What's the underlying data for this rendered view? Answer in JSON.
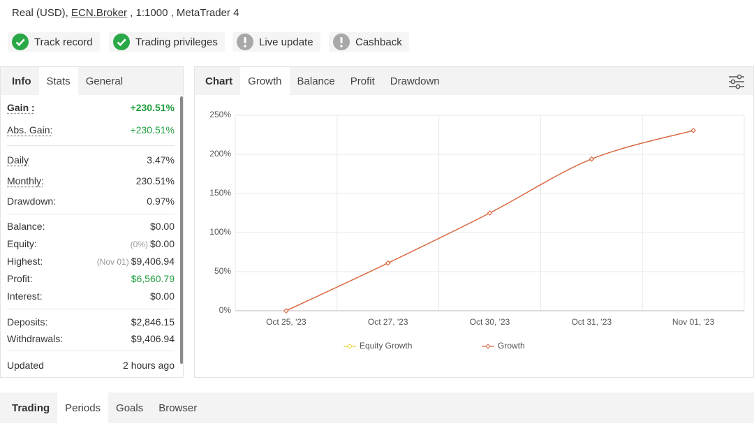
{
  "header": {
    "parts": [
      "Real (USD), ",
      "ECN.Broker",
      " , 1:1000 , MetaTrader 4"
    ]
  },
  "badges": [
    "Track record",
    "Trading privileges",
    "Live update",
    "Cashback"
  ],
  "left_tabs": [
    "Info",
    "Stats",
    "General"
  ],
  "stats": [
    [
      {
        "label": "Gain :",
        "value": "+230.51%",
        "color": "#1e9e3e"
      },
      {
        "label": "Abs. Gain:",
        "value": "+230.51%",
        "color": "#1e9e3e"
      }
    ],
    [
      {
        "label": "Daily",
        "value": "3.47%"
      },
      {
        "label": "Monthly:",
        "value": "230.51%"
      },
      {
        "label": "Drawdown:",
        "value": "0.97%"
      }
    ],
    [
      {
        "label": "Balance:",
        "value": "$0.00"
      },
      {
        "label": "Equity:",
        "note": "(0%)",
        "value": "$0.00"
      },
      {
        "label": "Highest:",
        "note": "(Nov 01)",
        "value": "$9,406.94"
      },
      {
        "label": "Profit:",
        "value": "$6,560.79",
        "color": "#1e9e3e"
      },
      {
        "label": "Interest:",
        "value": "$0.00"
      }
    ],
    [
      {
        "label": "Deposits:",
        "value": "$2,846.15"
      },
      {
        "label": "Withdrawals:",
        "value": "$9,406.94"
      }
    ],
    [
      {
        "label": "Updated",
        "value": "2 hours ago"
      }
    ]
  ],
  "chart_tabs": [
    "Chart",
    "Growth",
    "Balance",
    "Profit",
    "Drawdown"
  ],
  "bottom_tabs": [
    "Trading",
    "Periods",
    "Goals",
    "Browser"
  ],
  "chart_data": {
    "type": "line",
    "categories": [
      "Oct 25, '23",
      "Oct 27, '23",
      "Oct 30, '23",
      "Oct 31, '23",
      "Nov 01, '23"
    ],
    "series": [
      {
        "name": "Equity Growth",
        "color": "#e8d23a",
        "values": [
          null,
          null,
          null,
          null,
          null
        ]
      },
      {
        "name": "Growth",
        "color": "#d9673e",
        "values": [
          0,
          61,
          125,
          194,
          230.51
        ]
      }
    ],
    "ylim": [
      0,
      250
    ],
    "yticks": [
      {
        "value": 0,
        "label": "0%"
      },
      {
        "value": 50,
        "label": "50%"
      },
      {
        "value": 100,
        "label": "100%"
      },
      {
        "value": 150,
        "label": "150%"
      },
      {
        "value": 200,
        "label": "200%"
      },
      {
        "value": 250,
        "label": "250%"
      }
    ],
    "grid": true
  }
}
